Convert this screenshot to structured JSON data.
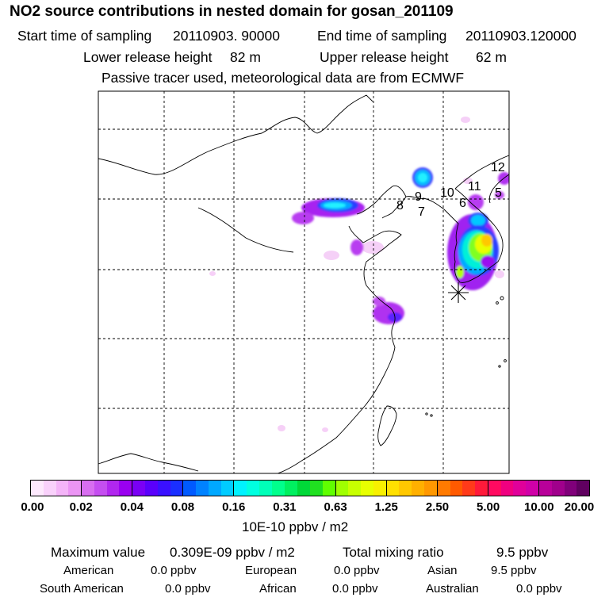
{
  "header": {
    "title": "NO2 source contributions in nested domain for gosan_201109",
    "start_label": "Start time of sampling",
    "start_value": "20110903. 90000",
    "end_label": "End time of sampling",
    "end_value": "20110903.120000",
    "lower_label": "Lower release height",
    "lower_value": "82 m",
    "upper_label": "Upper release height",
    "upper_value": "62 m",
    "tracer_note": "Passive tracer used, meteorological data are from ECMWF"
  },
  "map": {
    "region_labels": [
      "12",
      "11",
      "10",
      "9",
      "8",
      "7",
      "6",
      "5"
    ],
    "receptor_marker": "asterisk-marker",
    "plumes": [
      {
        "level": "cyan"
      },
      {
        "level": "purple"
      }
    ]
  },
  "colorbar": {
    "ticks": [
      "0.00",
      "0.02",
      "0.04",
      "0.08",
      "0.16",
      "0.31",
      "0.63",
      "1.25",
      "2.50",
      "5.00",
      "10.00",
      "20.00"
    ],
    "segments": [
      [
        "#fde9fd",
        "#f9d1fb",
        "#f4b4f8",
        "#eb95f4"
      ],
      [
        "#d86ef0",
        "#c54ef0",
        "#b127ef",
        "#9a00f0"
      ],
      [
        "#7a00f5",
        "#5a00fb",
        "#3a10ff",
        "#1a2fff"
      ],
      [
        "#005aff",
        "#0082ff",
        "#00a8ff",
        "#00ccff"
      ],
      [
        "#00f2ff",
        "#00ffe0",
        "#00ffb8",
        "#00ff8c"
      ],
      [
        "#00f060",
        "#00d838",
        "#20e020",
        "#60ff00"
      ],
      [
        "#a0ff00",
        "#c8ff00",
        "#e8ff00",
        "#f8f000"
      ],
      [
        "#ffe000",
        "#ffc800",
        "#ffb000",
        "#ff9800"
      ],
      [
        "#ff7a00",
        "#ff5a00",
        "#ff3a1a",
        "#ff1a3a"
      ],
      [
        "#ff0a60",
        "#f00080",
        "#e0009a",
        "#d000a8"
      ],
      [
        "#b8009a",
        "#a0008c",
        "#80007a",
        "#600060"
      ]
    ],
    "units": "10E-10 ppbv / m2"
  },
  "stats": {
    "max_label": "Maximum value",
    "max_value": "0.309E-09 ppbv / m2",
    "total_label": "Total mixing ratio",
    "total_value": "9.5 ppbv",
    "american_label": "American",
    "american_value": "0.0 ppbv",
    "european_label": "European",
    "european_value": "0.0 ppbv",
    "asian_label": "Asian",
    "asian_value": "9.5 ppbv",
    "south_american_label": "South American",
    "south_american_value": "0.0 ppbv",
    "african_label": "African",
    "african_value": "0.0 ppbv",
    "australian_label": "Australian",
    "australian_value": "0.0 ppbv"
  }
}
